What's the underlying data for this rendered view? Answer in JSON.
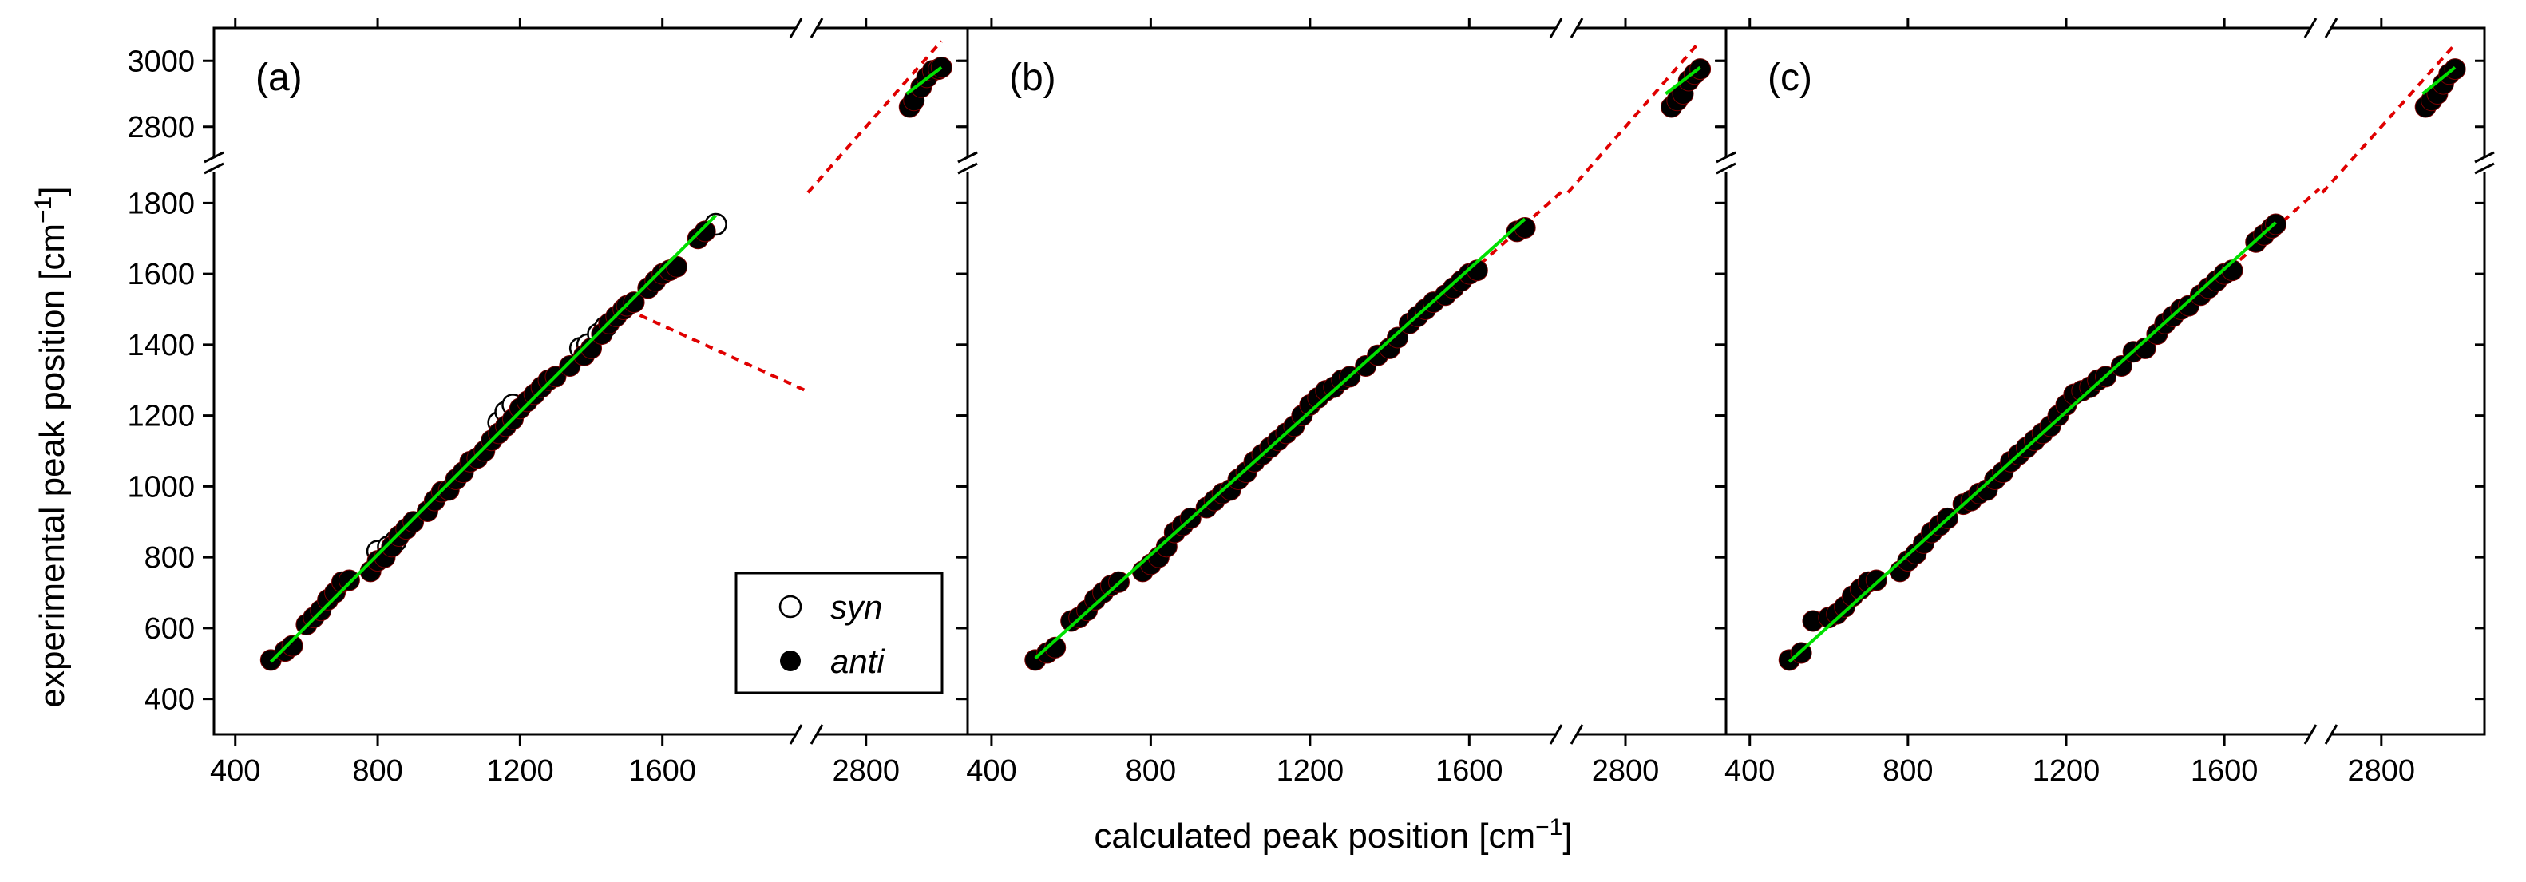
{
  "figure": {
    "xlabel_text": "calculated peak position [cm",
    "xlabel_sup": "−1",
    "xlabel_close": "]",
    "ylabel_text": "experimental peak position [cm",
    "ylabel_sup": "−1",
    "ylabel_close": "]"
  },
  "legend": {
    "syn": "syn",
    "anti": "anti"
  },
  "colors": {
    "fit_line": "#00e000",
    "reference_line": "#e00000",
    "points": "#000000"
  },
  "chart_data": [
    {
      "type": "scatter",
      "panel_label": "(a)",
      "x_ticks_low": [
        400,
        800,
        1200,
        1600
      ],
      "x_ticks_high": [
        2800
      ],
      "y_ticks_low": [
        400,
        600,
        800,
        1000,
        1200,
        1400,
        1600,
        1800
      ],
      "y_ticks_high": [
        2800,
        3000
      ],
      "x_range_low": [
        340,
        2000
      ],
      "x_range_high": [
        2600,
        3150
      ],
      "y_range_low": [
        300,
        1900
      ],
      "y_range_high": [
        2700,
        3100
      ],
      "series": [
        {
          "name": "syn",
          "style": "open",
          "points": [
            [
              800,
              817
            ],
            [
              830,
              830
            ],
            [
              850,
              845
            ],
            [
              1140,
              1180
            ],
            [
              1160,
              1210
            ],
            [
              1180,
              1230
            ],
            [
              1370,
              1390
            ],
            [
              1390,
              1400
            ],
            [
              1420,
              1430
            ],
            [
              1440,
              1450
            ],
            [
              1750,
              1740
            ]
          ]
        },
        {
          "name": "anti",
          "style": "filled",
          "points": [
            [
              500,
              510
            ],
            [
              540,
              535
            ],
            [
              560,
              550
            ],
            [
              600,
              610
            ],
            [
              620,
              630
            ],
            [
              640,
              650
            ],
            [
              660,
              680
            ],
            [
              680,
              700
            ],
            [
              700,
              730
            ],
            [
              720,
              735
            ],
            [
              780,
              760
            ],
            [
              800,
              790
            ],
            [
              820,
              800
            ],
            [
              840,
              830
            ],
            [
              860,
              860
            ],
            [
              880,
              880
            ],
            [
              900,
              900
            ],
            [
              940,
              930
            ],
            [
              960,
              960
            ],
            [
              980,
              985
            ],
            [
              1000,
              990
            ],
            [
              1020,
              1020
            ],
            [
              1040,
              1040
            ],
            [
              1060,
              1070
            ],
            [
              1080,
              1080
            ],
            [
              1100,
              1100
            ],
            [
              1120,
              1130
            ],
            [
              1140,
              1150
            ],
            [
              1160,
              1170
            ],
            [
              1180,
              1190
            ],
            [
              1200,
              1220
            ],
            [
              1220,
              1240
            ],
            [
              1240,
              1260
            ],
            [
              1260,
              1280
            ],
            [
              1280,
              1300
            ],
            [
              1300,
              1310
            ],
            [
              1340,
              1340
            ],
            [
              1380,
              1370
            ],
            [
              1400,
              1390
            ],
            [
              1430,
              1430
            ],
            [
              1450,
              1460
            ],
            [
              1470,
              1480
            ],
            [
              1490,
              1500
            ],
            [
              1500,
              1510
            ],
            [
              1520,
              1520
            ],
            [
              1560,
              1560
            ],
            [
              1580,
              1580
            ],
            [
              1600,
              1600
            ],
            [
              1620,
              1610
            ],
            [
              1640,
              1620
            ],
            [
              1700,
              1700
            ],
            [
              1720,
              1720
            ],
            [
              2950,
              2860
            ],
            [
              2965,
              2880
            ],
            [
              2990,
              2920
            ],
            [
              3010,
              2950
            ],
            [
              3030,
              2970
            ],
            [
              3050,
              2975
            ],
            [
              3060,
              2980
            ]
          ]
        }
      ],
      "fit_x_low": [
        500,
        1750
      ],
      "ref_x_low": [
        1500,
        2000
      ],
      "ref_x_high": [
        2600,
        3060
      ]
    },
    {
      "type": "scatter",
      "panel_label": "(b)",
      "x_ticks_low": [
        400,
        800,
        1200,
        1600
      ],
      "x_ticks_high": [
        2800
      ],
      "y_ticks_low": [
        400,
        600,
        800,
        1000,
        1200,
        1400,
        1600,
        1800
      ],
      "y_ticks_high": [
        2800,
        3000
      ],
      "x_range_low": [
        340,
        1840
      ],
      "x_range_high": [
        2600,
        3150
      ],
      "y_range_low": [
        300,
        1900
      ],
      "y_range_high": [
        2700,
        3100
      ],
      "series": [
        {
          "name": "anti",
          "style": "filled",
          "points": [
            [
              510,
              510
            ],
            [
              540,
              530
            ],
            [
              560,
              545
            ],
            [
              600,
              620
            ],
            [
              620,
              630
            ],
            [
              640,
              650
            ],
            [
              660,
              680
            ],
            [
              680,
              700
            ],
            [
              700,
              720
            ],
            [
              720,
              730
            ],
            [
              780,
              760
            ],
            [
              800,
              780
            ],
            [
              820,
              800
            ],
            [
              840,
              830
            ],
            [
              860,
              870
            ],
            [
              880,
              890
            ],
            [
              900,
              910
            ],
            [
              940,
              940
            ],
            [
              960,
              960
            ],
            [
              980,
              980
            ],
            [
              1000,
              990
            ],
            [
              1020,
              1020
            ],
            [
              1040,
              1040
            ],
            [
              1060,
              1070
            ],
            [
              1080,
              1090
            ],
            [
              1100,
              1110
            ],
            [
              1120,
              1130
            ],
            [
              1140,
              1150
            ],
            [
              1160,
              1170
            ],
            [
              1180,
              1200
            ],
            [
              1200,
              1230
            ],
            [
              1220,
              1250
            ],
            [
              1240,
              1270
            ],
            [
              1260,
              1280
            ],
            [
              1280,
              1300
            ],
            [
              1300,
              1310
            ],
            [
              1340,
              1340
            ],
            [
              1370,
              1370
            ],
            [
              1400,
              1390
            ],
            [
              1420,
              1420
            ],
            [
              1450,
              1460
            ],
            [
              1470,
              1480
            ],
            [
              1490,
              1500
            ],
            [
              1510,
              1520
            ],
            [
              1540,
              1540
            ],
            [
              1560,
              1560
            ],
            [
              1580,
              1580
            ],
            [
              1600,
              1600
            ],
            [
              1620,
              1610
            ],
            [
              1720,
              1720
            ],
            [
              1740,
              1730
            ],
            [
              2960,
              2860
            ],
            [
              2980,
              2880
            ],
            [
              3000,
              2900
            ],
            [
              3020,
              2940
            ],
            [
              3040,
              2960
            ],
            [
              3060,
              2975
            ]
          ]
        }
      ],
      "fit_x_low": [
        510,
        1740
      ],
      "ref_x_low": [
        1600,
        1840
      ],
      "ref_x_high": [
        2600,
        3060
      ]
    },
    {
      "type": "scatter",
      "panel_label": "(c)",
      "x_ticks_low": [
        400,
        800,
        1200,
        1600
      ],
      "x_ticks_high": [
        2800
      ],
      "y_ticks_low": [
        400,
        600,
        800,
        1000,
        1200,
        1400,
        1600,
        1800
      ],
      "y_ticks_high": [
        2800,
        3000
      ],
      "x_range_low": [
        340,
        1840
      ],
      "x_range_high": [
        2600,
        3150
      ],
      "y_range_low": [
        300,
        1900
      ],
      "y_range_high": [
        2700,
        3100
      ],
      "series": [
        {
          "name": "anti",
          "style": "filled",
          "points": [
            [
              500,
              510
            ],
            [
              530,
              530
            ],
            [
              560,
              620
            ],
            [
              600,
              630
            ],
            [
              620,
              640
            ],
            [
              640,
              660
            ],
            [
              660,
              690
            ],
            [
              680,
              710
            ],
            [
              700,
              730
            ],
            [
              720,
              735
            ],
            [
              780,
              760
            ],
            [
              800,
              790
            ],
            [
              820,
              810
            ],
            [
              840,
              840
            ],
            [
              860,
              870
            ],
            [
              880,
              890
            ],
            [
              900,
              910
            ],
            [
              940,
              950
            ],
            [
              960,
              960
            ],
            [
              980,
              980
            ],
            [
              1000,
              990
            ],
            [
              1020,
              1020
            ],
            [
              1040,
              1040
            ],
            [
              1060,
              1070
            ],
            [
              1080,
              1090
            ],
            [
              1100,
              1110
            ],
            [
              1120,
              1130
            ],
            [
              1140,
              1150
            ],
            [
              1160,
              1170
            ],
            [
              1180,
              1200
            ],
            [
              1200,
              1230
            ],
            [
              1220,
              1260
            ],
            [
              1240,
              1270
            ],
            [
              1260,
              1280
            ],
            [
              1280,
              1300
            ],
            [
              1300,
              1310
            ],
            [
              1340,
              1340
            ],
            [
              1370,
              1380
            ],
            [
              1400,
              1390
            ],
            [
              1430,
              1430
            ],
            [
              1450,
              1460
            ],
            [
              1470,
              1480
            ],
            [
              1490,
              1500
            ],
            [
              1510,
              1510
            ],
            [
              1540,
              1540
            ],
            [
              1560,
              1560
            ],
            [
              1580,
              1580
            ],
            [
              1600,
              1600
            ],
            [
              1620,
              1610
            ],
            [
              1680,
              1690
            ],
            [
              1700,
              1710
            ],
            [
              1720,
              1730
            ],
            [
              1730,
              1740
            ],
            [
              2950,
              2860
            ],
            [
              2970,
              2880
            ],
            [
              2990,
              2900
            ],
            [
              3010,
              2930
            ],
            [
              3030,
              2960
            ],
            [
              3050,
              2975
            ]
          ]
        }
      ],
      "fit_x_low": [
        500,
        1730
      ],
      "ref_x_low": [
        1450,
        1840
      ],
      "ref_x_high": [
        2600,
        3050
      ]
    }
  ]
}
